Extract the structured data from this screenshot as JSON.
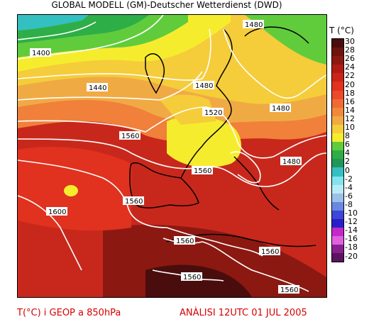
{
  "header": {
    "title": "GLOBAL MODELL (GM)-Deutscher Wetterdienst (DWD)"
  },
  "legend": {
    "title": "T (°C)",
    "ticks": [
      "30",
      "28",
      "26",
      "24",
      "22",
      "20",
      "18",
      "16",
      "14",
      "12",
      "10",
      "8",
      "6",
      "4",
      "2",
      "0",
      "-2",
      "-4",
      "-6",
      "-8",
      "-10",
      "-12",
      "-14",
      "-16",
      "-18",
      "-20"
    ],
    "colors": [
      "#4a0d0d",
      "#6e1410",
      "#8c1812",
      "#b01c14",
      "#cc2418",
      "#e0321e",
      "#ec4a2a",
      "#f06a34",
      "#f08a3a",
      "#f0aa44",
      "#f5cc3a",
      "#f6ec2e",
      "#60cc3c",
      "#2eae46",
      "#22965a",
      "#34c0c0",
      "#82e4ee",
      "#b8ecf4",
      "#9cc0e8",
      "#6a88e0",
      "#3c46d8",
      "#2a1ec8",
      "#c428c8",
      "#e060e0",
      "#8a2090",
      "#5a1460"
    ]
  },
  "contours": [
    {
      "label": "1400"
    },
    {
      "label": "1440"
    },
    {
      "label": "1480"
    },
    {
      "label": "1480"
    },
    {
      "label": "1480"
    },
    {
      "label": "1520"
    },
    {
      "label": "1480"
    },
    {
      "label": "1560"
    },
    {
      "label": "1560"
    },
    {
      "label": "1560"
    },
    {
      "label": "1600"
    },
    {
      "label": "1560"
    },
    {
      "label": "1560"
    },
    {
      "label": "1560"
    },
    {
      "label": "1560"
    }
  ],
  "footer": {
    "left": "T(°C) i GEOP a 850hPa",
    "right": "ANÀLISI 12UTC 01 JUL 2005"
  }
}
